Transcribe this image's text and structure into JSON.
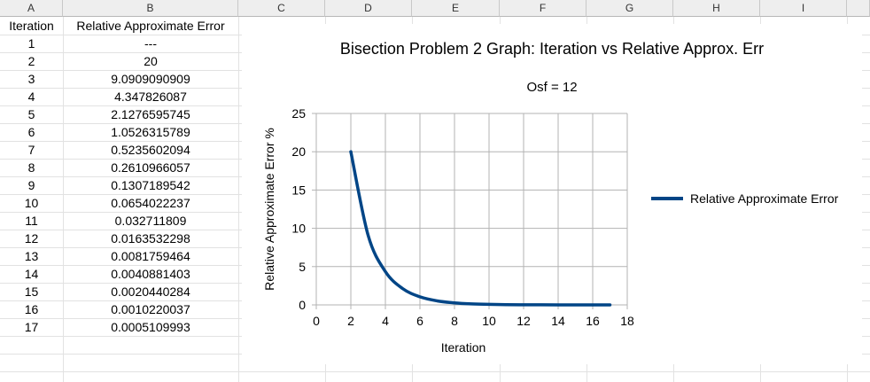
{
  "columns": [
    "A",
    "B",
    "C",
    "D",
    "E",
    "F",
    "G",
    "H",
    "I"
  ],
  "headers": {
    "iteration": "Iteration",
    "error": "Relative Approximate Error"
  },
  "rows": [
    {
      "iteration": "1",
      "error": "---"
    },
    {
      "iteration": "2",
      "error": "20"
    },
    {
      "iteration": "3",
      "error": "9.0909090909"
    },
    {
      "iteration": "4",
      "error": "4.347826087"
    },
    {
      "iteration": "5",
      "error": "2.1276595745"
    },
    {
      "iteration": "6",
      "error": "1.0526315789"
    },
    {
      "iteration": "7",
      "error": "0.5235602094"
    },
    {
      "iteration": "8",
      "error": "0.2610966057"
    },
    {
      "iteration": "9",
      "error": "0.1307189542"
    },
    {
      "iteration": "10",
      "error": "0.0654022237"
    },
    {
      "iteration": "11",
      "error": "0.032711809"
    },
    {
      "iteration": "12",
      "error": "0.0163532298"
    },
    {
      "iteration": "13",
      "error": "0.0081759464"
    },
    {
      "iteration": "14",
      "error": "0.0040881403"
    },
    {
      "iteration": "15",
      "error": "0.0020440284"
    },
    {
      "iteration": "16",
      "error": "0.0010220037"
    },
    {
      "iteration": "17",
      "error": "0.0005109993"
    }
  ],
  "chart_data": {
    "type": "line",
    "title": "Bisection Problem 2 Graph: Iteration vs Relative Approx. Err",
    "subtitle": "Osf = 12",
    "xlabel": "Iteration",
    "ylabel": "Relative Approximate Error %",
    "xlim": [
      0,
      18
    ],
    "ylim": [
      0,
      25
    ],
    "xticks": [
      0,
      2,
      4,
      6,
      8,
      10,
      12,
      14,
      16,
      18
    ],
    "yticks": [
      0,
      5,
      10,
      15,
      20,
      25
    ],
    "grid": true,
    "smooth": true,
    "legend_position": "right",
    "series": [
      {
        "name": "Relative Approximate Error",
        "color": "#004586",
        "x": [
          2,
          3,
          4,
          5,
          6,
          7,
          8,
          9,
          10,
          11,
          12,
          13,
          14,
          15,
          16,
          17
        ],
        "y": [
          20,
          9.0909090909,
          4.347826087,
          2.1276595745,
          1.0526315789,
          0.5235602094,
          0.2610966057,
          0.1307189542,
          0.0654022237,
          0.032711809,
          0.0163532298,
          0.0081759464,
          0.0040881403,
          0.0020440284,
          0.0010220037,
          0.0005109993
        ]
      }
    ]
  }
}
